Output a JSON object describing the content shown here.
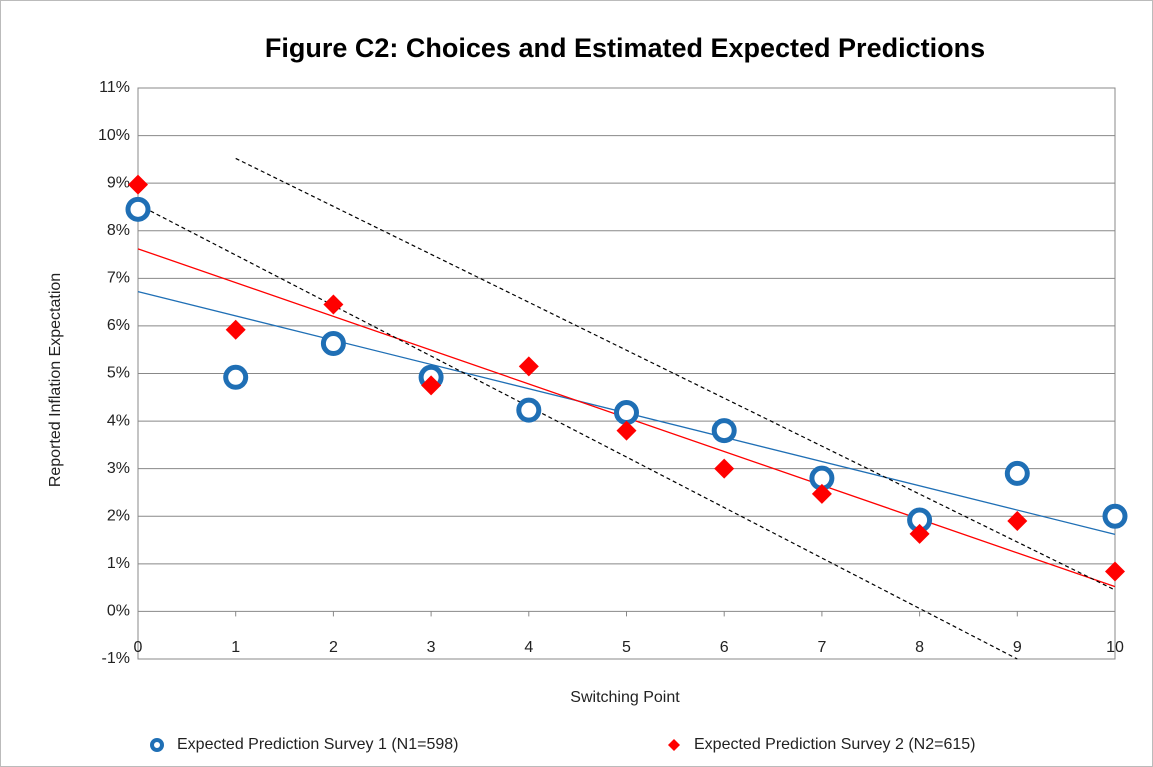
{
  "chart_data": {
    "type": "scatter",
    "title": "Figure C2: Choices and Estimated Expected Predictions",
    "x_label": "Switching Point",
    "y_label": "Reported Inflation Expectation",
    "xlim": [
      0,
      10
    ],
    "xticks": [
      0,
      1,
      2,
      3,
      4,
      5,
      6,
      7,
      8,
      9,
      10
    ],
    "ylim": [
      -1,
      11
    ],
    "yticks": [
      {
        "value": -1,
        "label": "-1%"
      },
      {
        "value": 0,
        "label": "0%"
      },
      {
        "value": 1,
        "label": "1%"
      },
      {
        "value": 2,
        "label": "2%"
      },
      {
        "value": 3,
        "label": "3%"
      },
      {
        "value": 4,
        "label": "4%"
      },
      {
        "value": 5,
        "label": "5%"
      },
      {
        "value": 6,
        "label": "6%"
      },
      {
        "value": 7,
        "label": "7%"
      },
      {
        "value": 8,
        "label": "8%"
      },
      {
        "value": 9,
        "label": "9%"
      },
      {
        "value": 10,
        "label": "10%"
      },
      {
        "value": 11,
        "label": "11%"
      }
    ],
    "grid": true,
    "legend": "bottom",
    "x": [
      0,
      1,
      2,
      3,
      4,
      5,
      6,
      7,
      8,
      9,
      10
    ],
    "series": [
      {
        "name": "Expected Prediction Survey 1 (N1=598)",
        "color": "#1f6fb5",
        "marker": "circle",
        "values": [
          8.45,
          4.92,
          5.63,
          4.92,
          4.23,
          4.18,
          3.8,
          2.8,
          1.92,
          2.9,
          2.0
        ]
      },
      {
        "name": "Expected Prediction Survey 2 (N2=615)",
        "color": "#ff0000",
        "marker": "diamond",
        "values": [
          8.97,
          5.92,
          6.45,
          4.75,
          5.15,
          3.8,
          3.0,
          2.47,
          1.63,
          1.9,
          0.84
        ]
      }
    ],
    "lines": [
      {
        "color": "#1f6fb5",
        "dashed": false,
        "x": [
          0,
          10
        ],
        "y": [
          6.72,
          1.62
        ]
      },
      {
        "color": "#ff0000",
        "dashed": false,
        "x": [
          0,
          10
        ],
        "y": [
          7.62,
          0.52
        ]
      },
      {
        "color": "#000000",
        "dashed": true,
        "x": [
          0,
          9
        ],
        "y": [
          8.55,
          -1.0
        ]
      },
      {
        "color": "#000000",
        "dashed": true,
        "x": [
          1,
          10
        ],
        "y": [
          9.52,
          0.45
        ]
      }
    ]
  }
}
